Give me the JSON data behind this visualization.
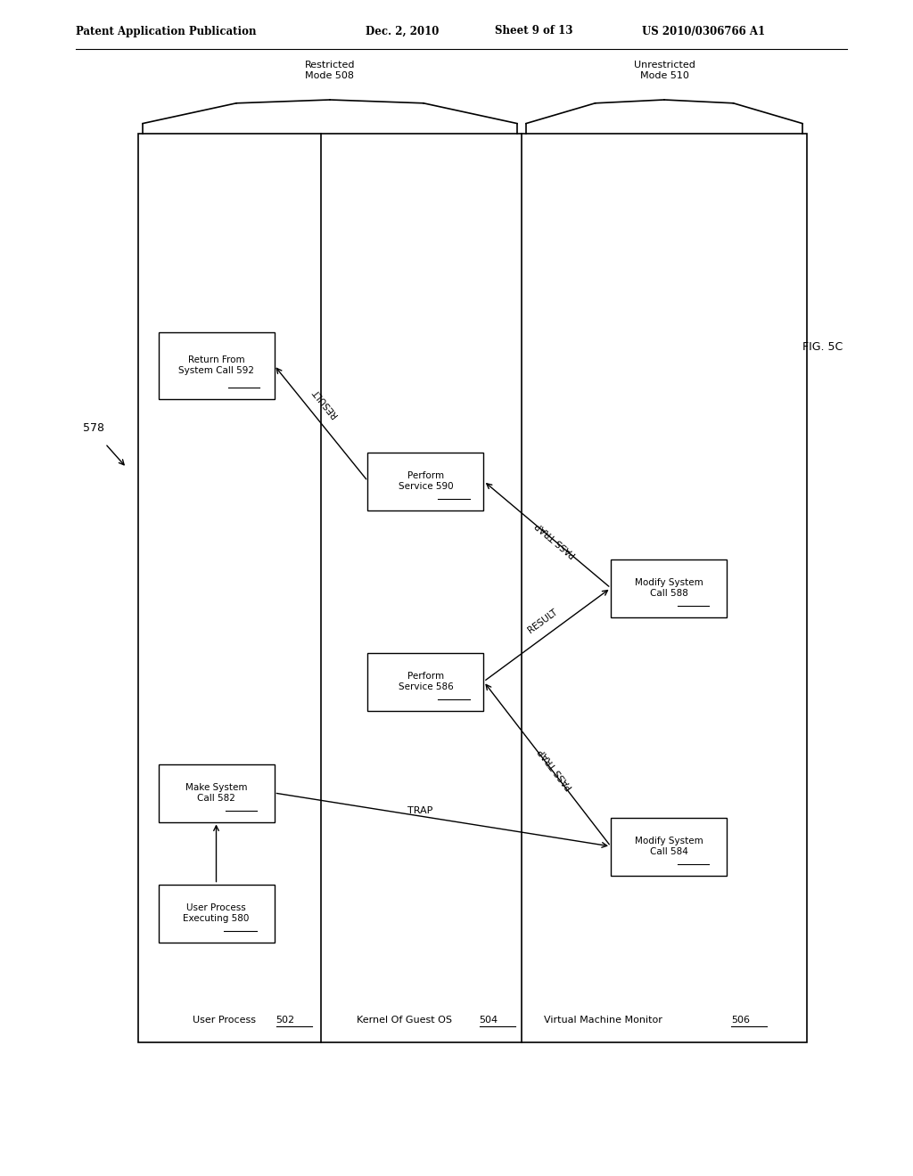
{
  "header_left": "Patent Application Publication",
  "header_mid": "Dec. 2, 2010   Sheet 9 of 13",
  "header_right": "US 2010/0306766 A1",
  "fig_label": "FIG. 5C",
  "arrow_label": "578",
  "mode_restricted_label": "Restricted\nMode 508",
  "mode_unrestricted_label": "Unrestricted\nMode 510",
  "col1_label": "User Process",
  "col1_num": "502",
  "col2_label": "Kernel Of Guest OS",
  "col2_num": "504",
  "col3_label": "Virtual Machine Monitor",
  "col3_num": "506",
  "box_580": "User Process\nExecuting 580",
  "box_582": "Make System\nCall 582",
  "box_584": "Modify System\nCall 584",
  "box_586": "Perform\nService 586",
  "box_588": "Modify System\nCall 588",
  "box_590": "Perform\nService 590",
  "box_592": "Return From\nSystem Call 592",
  "bg_color": "#ffffff",
  "line_color": "#000000"
}
